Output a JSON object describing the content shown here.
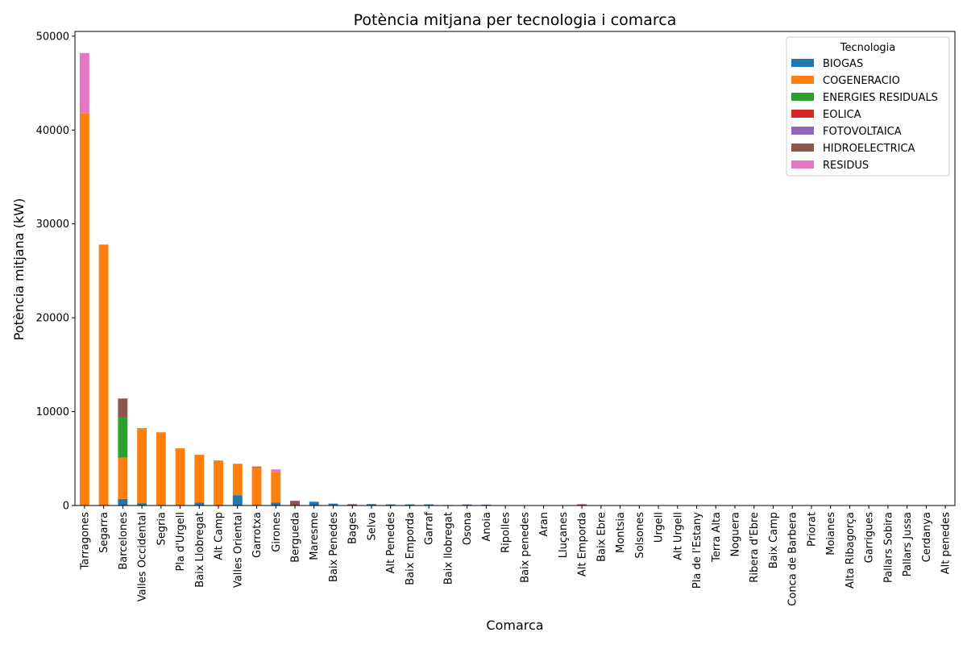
{
  "chart_data": {
    "type": "bar",
    "stacked": true,
    "title": "Potència mitjana per tecnologia i comarca",
    "xlabel": "Comarca",
    "ylabel": "Potència mitjana (kW)",
    "ylim": [
      0,
      50500
    ],
    "yticks": [
      0,
      10000,
      20000,
      30000,
      40000,
      50000
    ],
    "ytick_labels": [
      "0",
      "10000",
      "20000",
      "30000",
      "40000",
      "50000"
    ],
    "grid": false,
    "legend": {
      "title": "Tecnologia",
      "placement": "top-right"
    },
    "categories": [
      "Tarragones",
      "Segarra",
      "Barcelones",
      "Valles Occidental",
      "Segria",
      "Pla d'Urgell",
      "Baix Llobregat",
      "Alt Camp",
      "Valles Oriental",
      "Garrotxa",
      "Girones",
      "Bergueda",
      "Maresme",
      "Baix Penedes",
      "Bages",
      "Selva",
      "Alt Penedes",
      "Baix Emporda",
      "Garraf",
      "Baix llobregat",
      "Osona",
      "Anoia",
      "Ripolles",
      "Baix penedes",
      "Aran",
      "Lluçanes",
      "Alt Emporda",
      "Baix Ebre",
      "Montsia",
      "Solsones",
      "Urgell",
      "Alt Urgell",
      "Pla de l'Estany",
      "Terra Alta",
      "Noguera",
      "Ribera d'Ebre",
      "Baix Camp",
      "Conca de Barbera",
      "Priorat",
      "Moianes",
      "Alta Ribagorça",
      "Garrigues",
      "Pallars Sobira",
      "Pallars Jussa",
      "Cerdanya",
      "Alt penedes"
    ],
    "series": [
      {
        "name": "BIOGAS",
        "color": "#1f77b4",
        "values": [
          0,
          0,
          700,
          250,
          0,
          0,
          300,
          0,
          1100,
          0,
          300,
          0,
          400,
          200,
          0,
          150,
          120,
          120,
          120,
          0,
          80,
          60,
          0,
          0,
          0,
          0,
          0,
          0,
          0,
          0,
          0,
          0,
          0,
          0,
          0,
          0,
          0,
          0,
          0,
          0,
          0,
          0,
          0,
          0,
          0,
          0
        ]
      },
      {
        "name": "COGENERACIO",
        "color": "#ff7f0e",
        "values": [
          41800,
          27800,
          4400,
          8000,
          7800,
          6100,
          5100,
          4800,
          3350,
          4050,
          3250,
          0,
          0,
          0,
          0,
          0,
          0,
          0,
          0,
          0,
          0,
          0,
          0,
          0,
          0,
          0,
          0,
          0,
          0,
          0,
          0,
          0,
          0,
          0,
          0,
          0,
          0,
          0,
          0,
          0,
          0,
          0,
          0,
          0,
          0,
          0
        ]
      },
      {
        "name": "ENERGIES RESIDUALS",
        "color": "#2ca02c",
        "values": [
          0,
          0,
          4300,
          0,
          0,
          0,
          0,
          0,
          0,
          0,
          0,
          0,
          0,
          0,
          0,
          0,
          0,
          0,
          0,
          0,
          0,
          0,
          0,
          0,
          0,
          0,
          0,
          0,
          0,
          0,
          0,
          0,
          0,
          0,
          0,
          0,
          0,
          0,
          0,
          0,
          0,
          0,
          0,
          0,
          0,
          0
        ]
      },
      {
        "name": "EOLICA",
        "color": "#d62728",
        "values": [
          0,
          0,
          0,
          0,
          0,
          0,
          0,
          0,
          0,
          0,
          0,
          0,
          0,
          0,
          0,
          0,
          0,
          0,
          0,
          0,
          0,
          0,
          0,
          0,
          0,
          0,
          100,
          0,
          0,
          0,
          0,
          0,
          0,
          0,
          0,
          0,
          0,
          0,
          0,
          0,
          0,
          0,
          0,
          0,
          0,
          0
        ]
      },
      {
        "name": "FOTOVOLTAICA",
        "color": "#9467bd",
        "values": [
          0,
          0,
          0,
          0,
          0,
          0,
          0,
          0,
          0,
          0,
          0,
          0,
          0,
          0,
          40,
          0,
          0,
          0,
          0,
          60,
          40,
          40,
          40,
          40,
          40,
          40,
          40,
          40,
          40,
          40,
          40,
          40,
          40,
          40,
          40,
          40,
          40,
          40,
          40,
          40,
          40,
          0,
          0,
          0,
          0,
          0
        ]
      },
      {
        "name": "HIDROELECTRICA",
        "color": "#8c564b",
        "values": [
          0,
          0,
          2000,
          0,
          0,
          0,
          0,
          0,
          0,
          100,
          0,
          500,
          0,
          0,
          100,
          0,
          0,
          0,
          0,
          0,
          0,
          0,
          0,
          0,
          0,
          0,
          0,
          0,
          0,
          0,
          0,
          0,
          0,
          0,
          0,
          0,
          0,
          0,
          0,
          0,
          0,
          0,
          0,
          0,
          0,
          0
        ]
      },
      {
        "name": "RESIDUS",
        "color": "#e377c2",
        "values": [
          6400,
          0,
          0,
          0,
          0,
          0,
          0,
          0,
          0,
          0,
          300,
          0,
          0,
          0,
          0,
          0,
          0,
          0,
          0,
          0,
          0,
          0,
          0,
          0,
          0,
          0,
          0,
          0,
          0,
          0,
          0,
          0,
          0,
          0,
          0,
          0,
          0,
          0,
          0,
          0,
          0,
          0,
          0,
          0,
          0,
          0
        ]
      }
    ]
  }
}
